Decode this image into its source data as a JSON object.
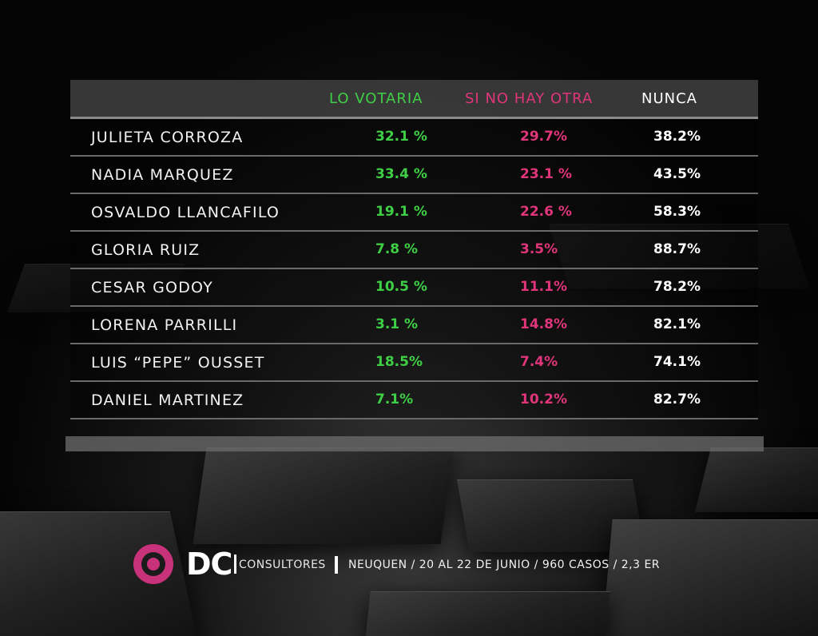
{
  "colors": {
    "lo_votaria": "#3fcf46",
    "si_no_hay_otra": "#e0357a",
    "nunca": "#ffffff",
    "brand": "#c8327a"
  },
  "chart_data": {
    "type": "table",
    "columns": [
      "LO VOTARIA",
      "SI NO HAY OTRA",
      "NUNCA"
    ],
    "rows": [
      {
        "name": "JULIETA CORROZA",
        "lo_votaria": "32.1 %",
        "si_no_hay_otra": "29.7%",
        "nunca": "38.2%"
      },
      {
        "name": "NADIA MARQUEZ",
        "lo_votaria": "33.4 %",
        "si_no_hay_otra": "23.1 %",
        "nunca": "43.5%"
      },
      {
        "name": "OSVALDO LLANCAFILO",
        "lo_votaria": "19.1 %",
        "si_no_hay_otra": "22.6 %",
        "nunca": "58.3%"
      },
      {
        "name": "GLORIA RUIZ",
        "lo_votaria": "7.8 %",
        "si_no_hay_otra": "3.5%",
        "nunca": "88.7%"
      },
      {
        "name": "CESAR GODOY",
        "lo_votaria": "10.5 %",
        "si_no_hay_otra": "11.1%",
        "nunca": "78.2%"
      },
      {
        "name": "LORENA PARRILLI",
        "lo_votaria": "3.1 %",
        "si_no_hay_otra": "14.8%",
        "nunca": "82.1%"
      },
      {
        "name": "LUIS “PEPE” OUSSET",
        "lo_votaria": "18.5%",
        "si_no_hay_otra": "7.4%",
        "nunca": "74.1%"
      },
      {
        "name": "DANIEL MARTINEZ",
        "lo_votaria": "7.1%",
        "si_no_hay_otra": "10.2%",
        "nunca": "82.7%"
      }
    ]
  },
  "footer": {
    "logo_text": "DC",
    "logo_sub": "CONSULTORES",
    "caption": "NEUQUEN / 20 AL 22 DE JUNIO / 960 CASOS / 2,3 ER"
  }
}
